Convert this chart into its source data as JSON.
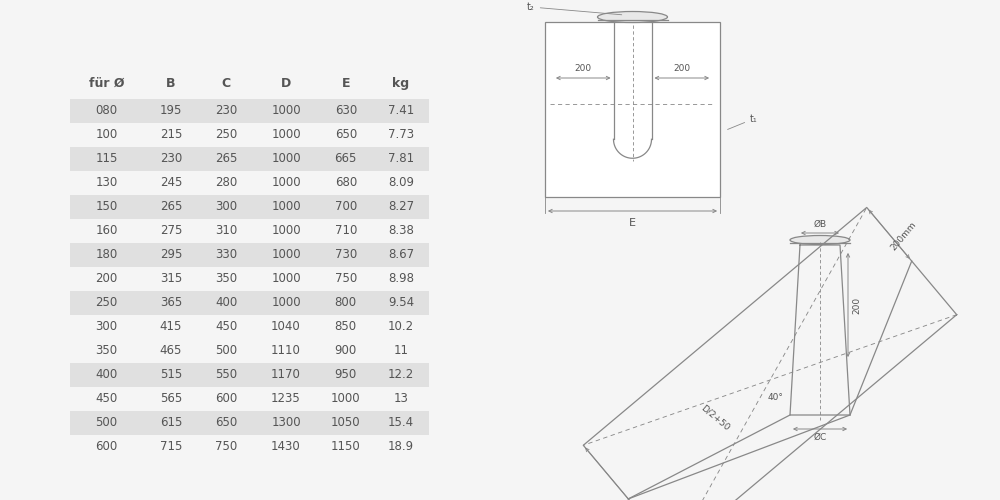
{
  "table_headers": [
    "für Ø",
    "B",
    "C",
    "D",
    "E",
    "kg"
  ],
  "table_rows": [
    [
      "080",
      "195",
      "230",
      "1000",
      "630",
      "7.41"
    ],
    [
      "100",
      "215",
      "250",
      "1000",
      "650",
      "7.73"
    ],
    [
      "115",
      "230",
      "265",
      "1000",
      "665",
      "7.81"
    ],
    [
      "130",
      "245",
      "280",
      "1000",
      "680",
      "8.09"
    ],
    [
      "150",
      "265",
      "300",
      "1000",
      "700",
      "8.27"
    ],
    [
      "160",
      "275",
      "310",
      "1000",
      "710",
      "8.38"
    ],
    [
      "180",
      "295",
      "330",
      "1000",
      "730",
      "8.67"
    ],
    [
      "200",
      "315",
      "350",
      "1000",
      "750",
      "8.98"
    ],
    [
      "250",
      "365",
      "400",
      "1000",
      "800",
      "9.54"
    ],
    [
      "300",
      "415",
      "450",
      "1040",
      "850",
      "10.2"
    ],
    [
      "350",
      "465",
      "500",
      "1110",
      "900",
      "11"
    ],
    [
      "400",
      "515",
      "550",
      "1170",
      "950",
      "12.2"
    ],
    [
      "450",
      "565",
      "600",
      "1235",
      "1000",
      "13"
    ],
    [
      "500",
      "615",
      "650",
      "1300",
      "1050",
      "15.4"
    ],
    [
      "600",
      "715",
      "750",
      "1430",
      "1150",
      "18.9"
    ]
  ],
  "shaded_rows": [
    0,
    2,
    4,
    6,
    8,
    11,
    13
  ],
  "row_bg_shaded": "#e0e0e0",
  "row_bg_normal": "#ffffff",
  "text_color": "#555555",
  "header_color": "#555555",
  "bg_color": "#f5f5f5"
}
